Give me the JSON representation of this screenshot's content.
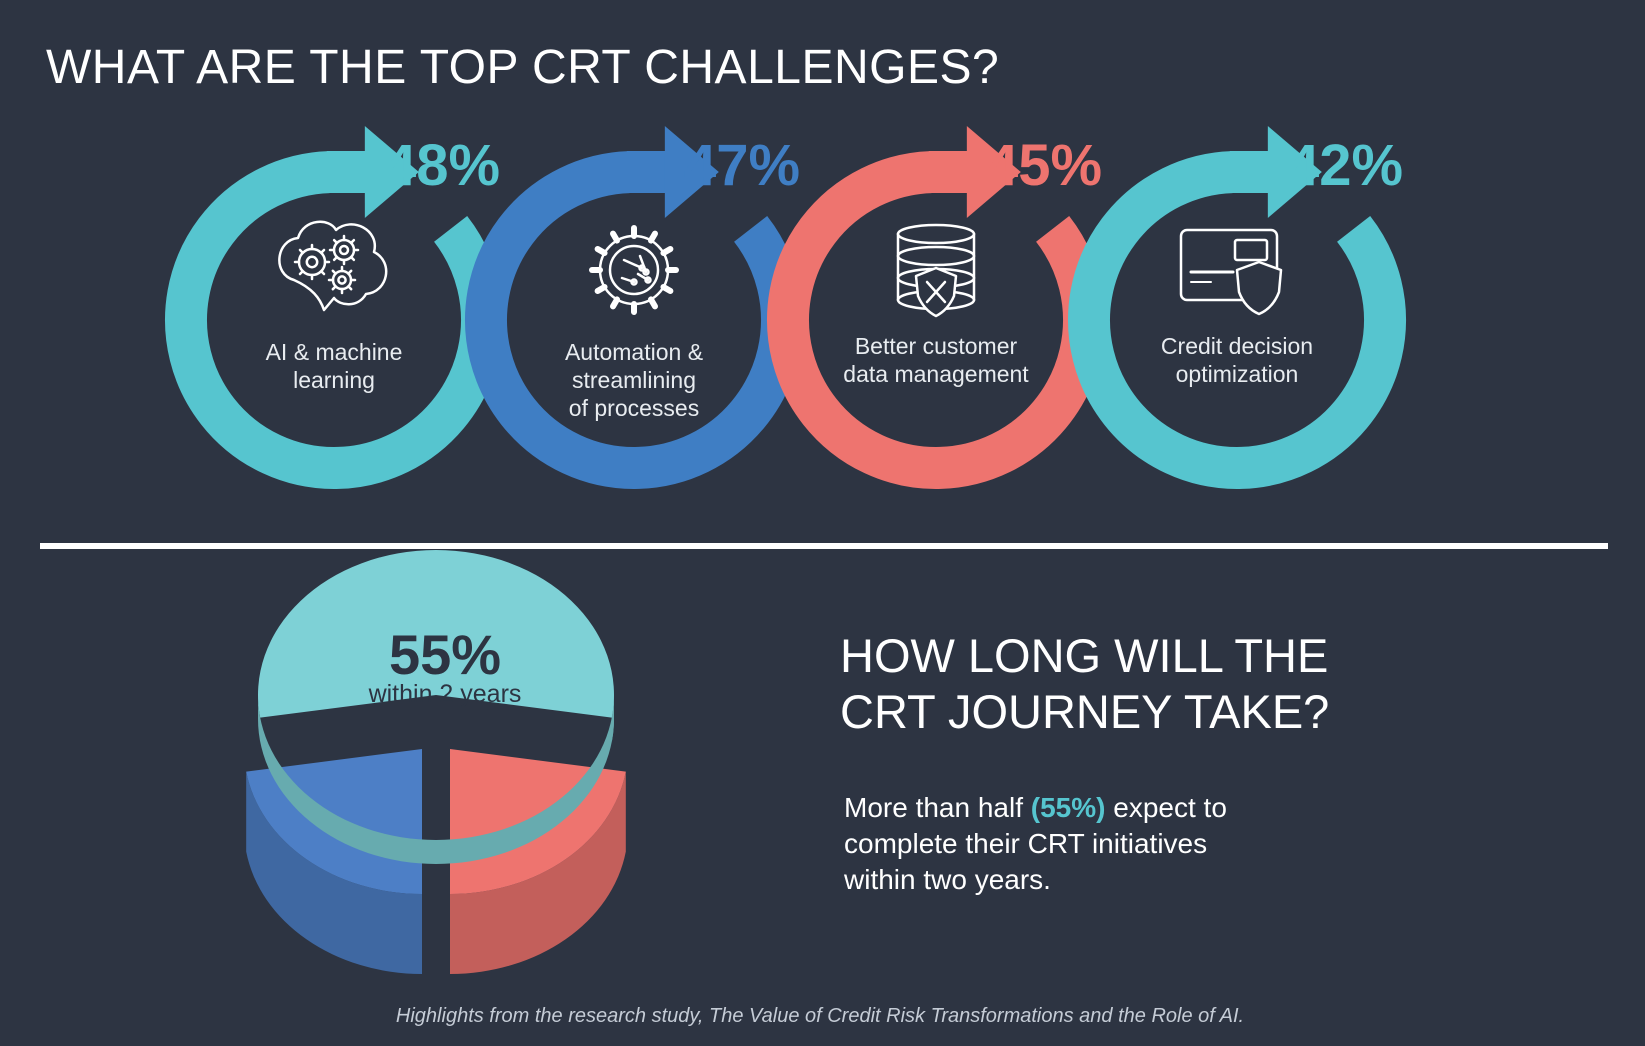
{
  "page": {
    "title": "WHAT ARE THE TOP CRT CHALLENGES?",
    "background_color": "#2d3442"
  },
  "chart_data": [
    {
      "type": "bar",
      "categories": [
        "AI & machine\nlearning",
        "Automation &\nstreamlining\nof processes",
        "Better customer\ndata management",
        "Credit decision\noptimization"
      ],
      "values": [
        48,
        47,
        45,
        42
      ],
      "value_labels": [
        "48%",
        "47%",
        "45%",
        "42%"
      ],
      "icons": [
        "brain-gears-icon",
        "gear-circuit-icon",
        "database-shield-icon",
        "credit-card-shield-icon"
      ],
      "colors": [
        "#56c5cf",
        "#3f7ec4",
        "#ee746f",
        "#56c5cf"
      ],
      "ylim": [
        0,
        100
      ]
    },
    {
      "type": "pie",
      "slices": [
        {
          "value": 55,
          "label": "55%",
          "sublabel": "within 2 years",
          "color": "#7ed1d6"
        },
        {
          "value": 22.5,
          "label": "",
          "sublabel": "",
          "color": "#ee746f"
        },
        {
          "value": 22.5,
          "label": "",
          "sublabel": "",
          "color": "#4d7fc6"
        }
      ]
    }
  ],
  "journey": {
    "heading": "HOW LONG WILL THE\nCRT JOURNEY TAKE?",
    "body_before": "More than half ",
    "body_highlight": "(55%)",
    "body_after": " expect to\ncomplete their CRT initiatives\nwithin two years.",
    "highlight_color": "#56c5cf"
  },
  "footer": {
    "text": "Highlights from the research study, The Value of Credit Risk Transformations and the Role of AI."
  }
}
